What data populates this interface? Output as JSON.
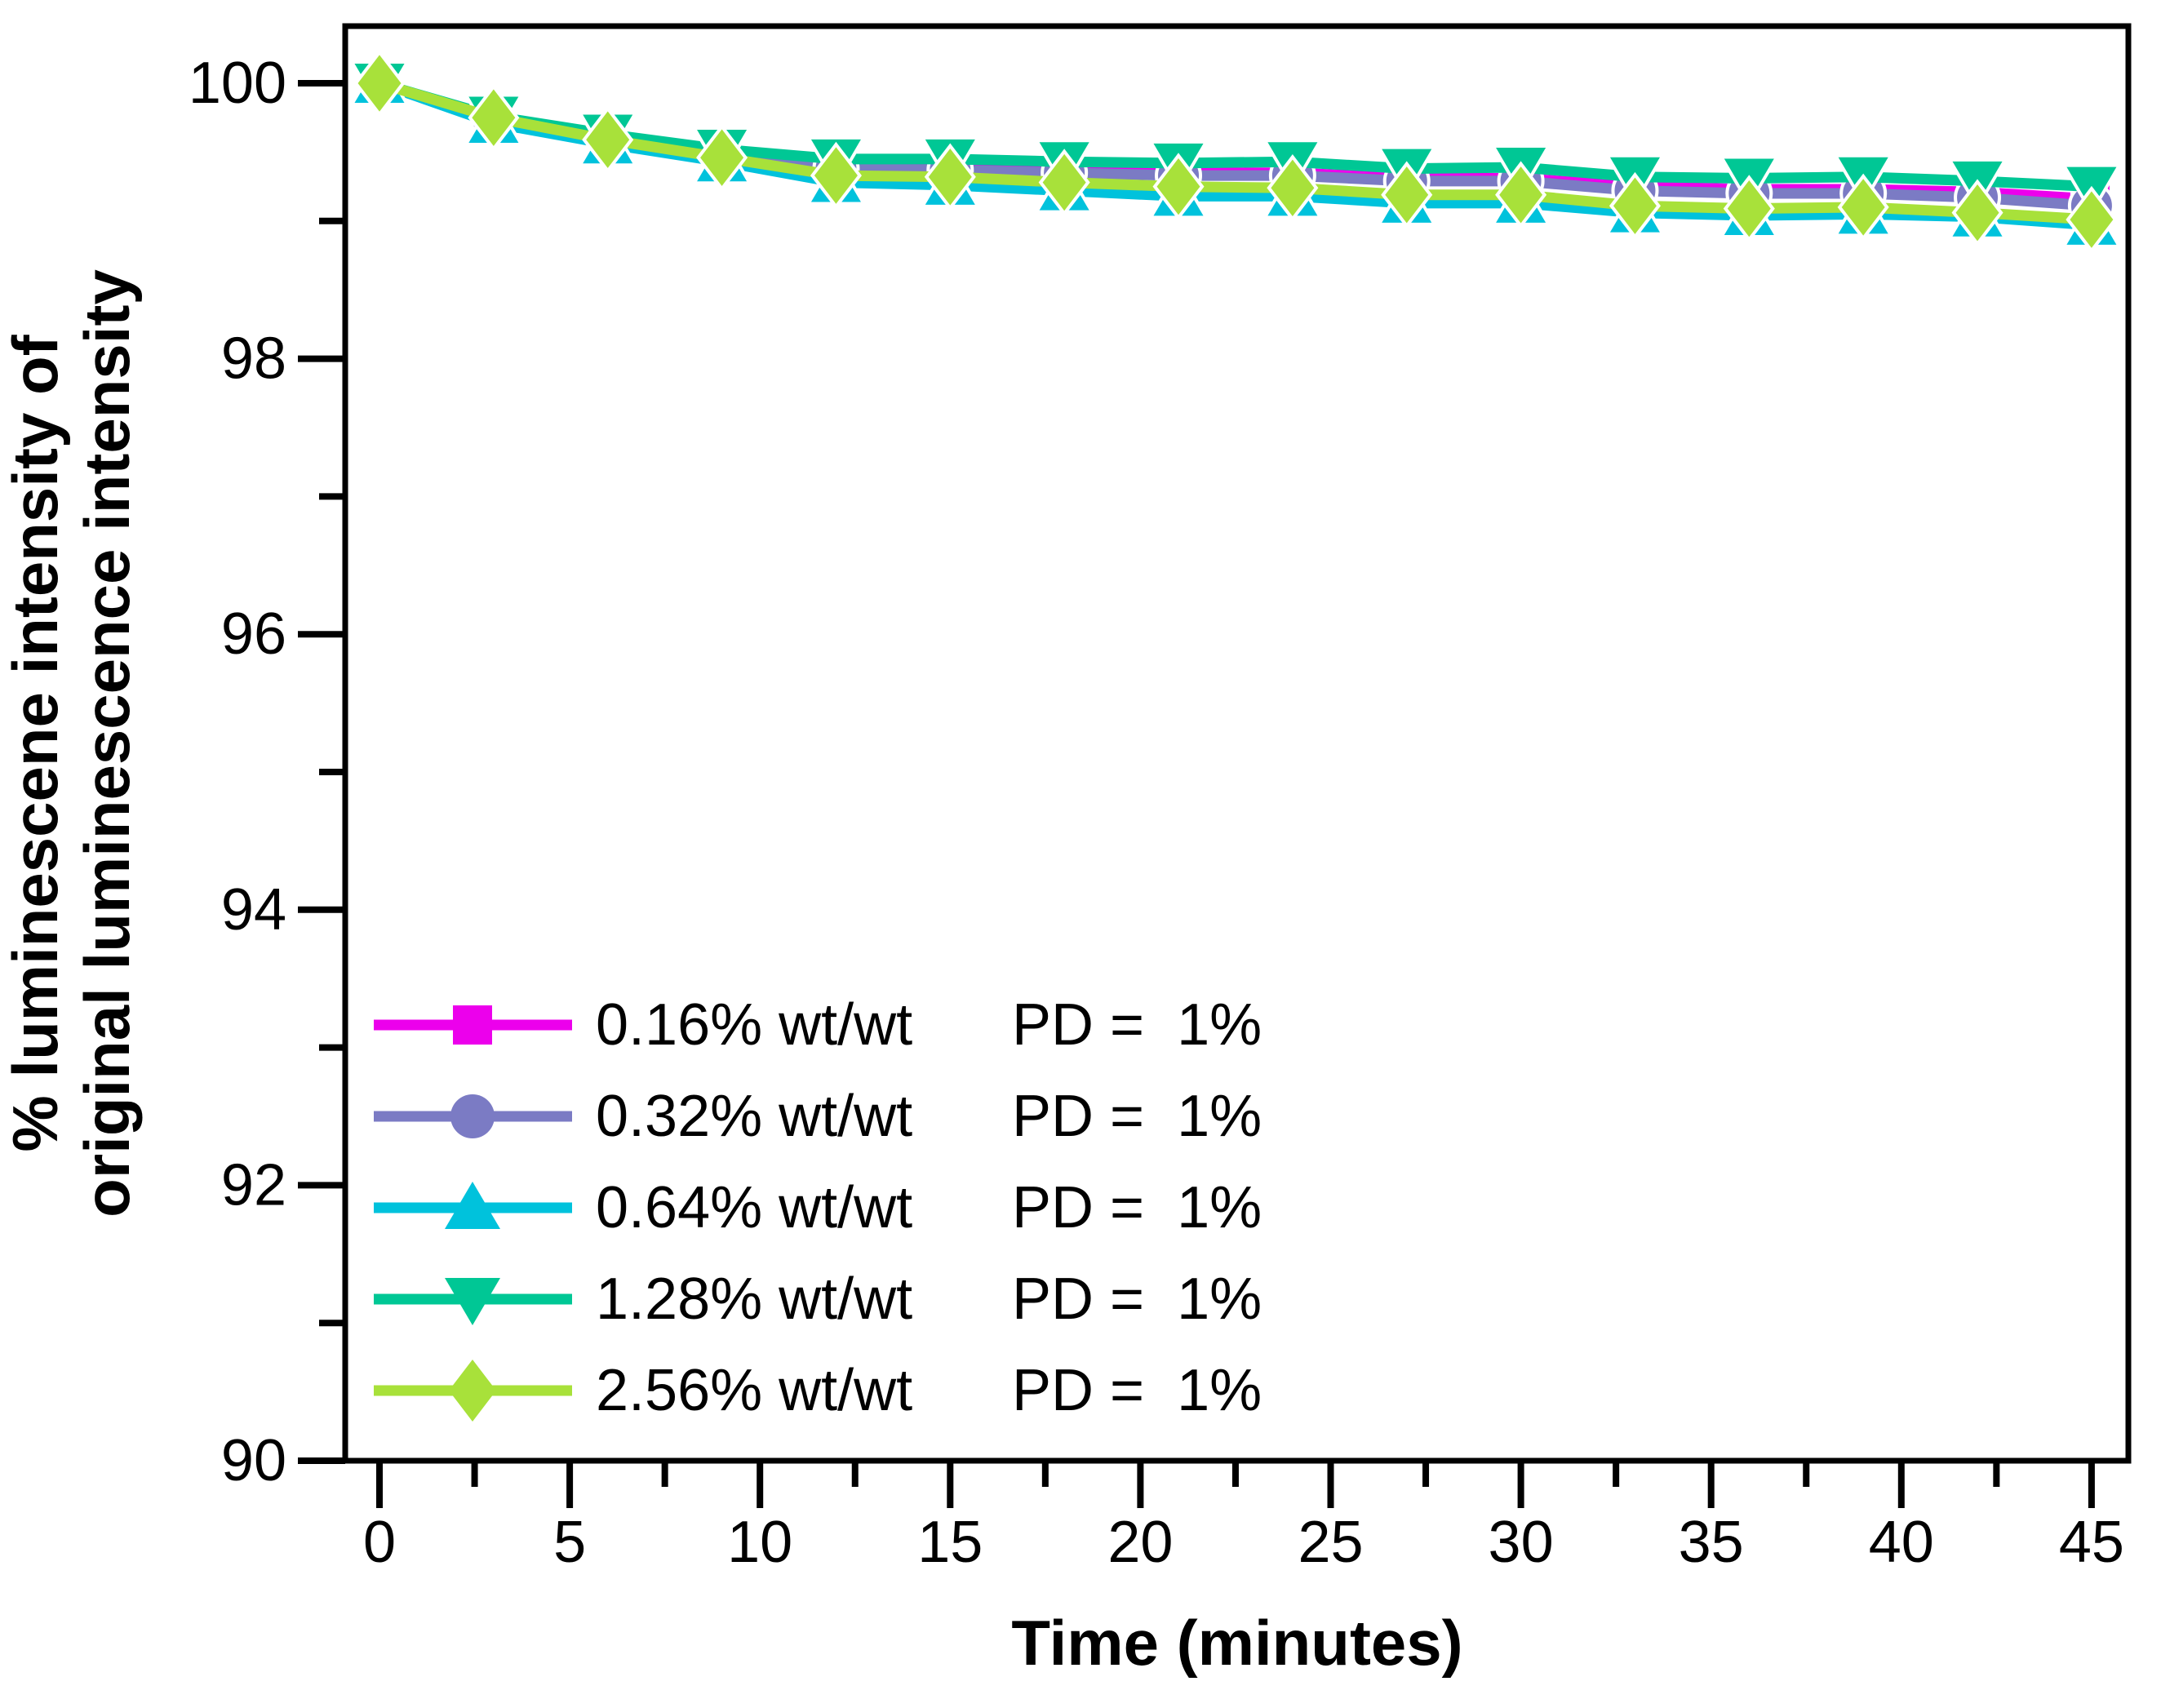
{
  "figure": {
    "background_color": "#ffffff",
    "axis_color": "#000000",
    "x_axis": {
      "title": "Time (minutes)",
      "tick_labels": [
        0,
        5,
        10,
        15,
        20,
        25,
        30,
        35,
        40,
        45
      ],
      "minor_tick_step": 2.5,
      "range": [
        -0.9,
        46.0
      ]
    },
    "y_axis": {
      "title_line1": "% luminescene intensity of",
      "title_line2": "original luminescence intensity",
      "tick_labels": [
        100,
        98,
        96,
        94,
        92,
        90
      ],
      "minor_tick_step": 1,
      "range": [
        90,
        100.4
      ]
    }
  },
  "chart_data": {
    "type": "line",
    "title": "",
    "xlabel": "Time (minutes)",
    "ylabel": "% luminescene intensity of original luminescence intensity",
    "xlim": [
      -0.9,
      46.0
    ],
    "ylim": [
      90,
      100.4
    ],
    "grid": false,
    "legend_position": "lower left",
    "x": [
      0,
      3,
      6,
      9,
      12,
      15,
      18,
      21,
      24,
      27,
      30,
      33,
      36,
      39,
      42,
      45
    ],
    "series": [
      {
        "name": "0.16% wt/wt",
        "legend_label": "0.16% wt/wt",
        "legend_pd": "PD =  1%",
        "color": "#EC00EC",
        "marker": "square",
        "values": [
          100,
          99.74,
          99.61,
          99.49,
          99.4,
          99.39,
          99.37,
          99.35,
          99.35,
          99.31,
          99.31,
          99.25,
          99.23,
          99.23,
          99.21,
          99.16
        ]
      },
      {
        "name": "0.32% wt/wt",
        "legend_label": "0.32% wt/wt",
        "legend_pd": "PD =  1%",
        "color": "#7B7BC4",
        "marker": "circle",
        "values": [
          100,
          99.73,
          99.6,
          99.48,
          99.38,
          99.37,
          99.35,
          99.33,
          99.33,
          99.29,
          99.29,
          99.22,
          99.2,
          99.2,
          99.17,
          99.11
        ]
      },
      {
        "name": "0.64% wt/wt",
        "legend_label": "0.64% wt/wt",
        "legend_pd": "PD =  1%",
        "color": "#00C2DC",
        "marker": "triangle-up",
        "values": [
          100,
          99.71,
          99.56,
          99.43,
          99.28,
          99.26,
          99.22,
          99.18,
          99.18,
          99.13,
          99.13,
          99.06,
          99.04,
          99.05,
          99.03,
          98.97
        ]
      },
      {
        "name": "1.28% wt/wt",
        "legend_label": "1.28% wt/wt",
        "legend_pd": "PD =  1%",
        "color": "#00C795",
        "marker": "triangle-down",
        "values": [
          100,
          99.76,
          99.63,
          99.52,
          99.45,
          99.45,
          99.43,
          99.42,
          99.43,
          99.38,
          99.39,
          99.32,
          99.31,
          99.32,
          99.29,
          99.25
        ]
      },
      {
        "name": "2.56% wt/wt",
        "legend_label": "2.56% wt/wt",
        "legend_pd": "PD =  1%",
        "color": "#A8E13A",
        "marker": "diamond",
        "values": [
          100,
          99.75,
          99.59,
          99.46,
          99.33,
          99.32,
          99.28,
          99.25,
          99.24,
          99.19,
          99.19,
          99.11,
          99.09,
          99.1,
          99.06,
          99.01
        ]
      }
    ]
  }
}
